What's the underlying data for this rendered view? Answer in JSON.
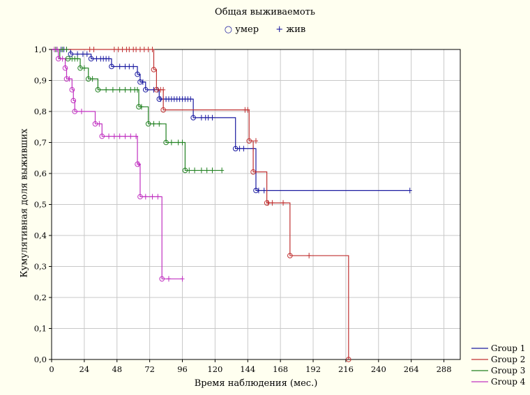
{
  "chart_data": {
    "type": "line",
    "step": true,
    "title": "Общая выживаемоть",
    "xlabel": "Время наблюдения (мес.)",
    "ylabel": "Кумулятивная доля выживших",
    "xlim": [
      0,
      300
    ],
    "ylim": [
      0,
      1
    ],
    "xticks": [
      0,
      24,
      48,
      72,
      96,
      120,
      144,
      168,
      192,
      216,
      240,
      264,
      288
    ],
    "yticks": [
      "0,0",
      "0,1",
      "0,2",
      "0,3",
      "0,4",
      "0,5",
      "0,6",
      "0,7",
      "0,8",
      "0,9",
      "1,0"
    ],
    "grid": true,
    "marker_legend": [
      {
        "symbol": "○",
        "label": "умер"
      },
      {
        "symbol": "+",
        "label": "жив"
      }
    ],
    "legend_placement": "bottom-right",
    "series": [
      {
        "name": "Group 1",
        "color": "#1a1aa0",
        "steps": [
          [
            0,
            1.0
          ],
          [
            14,
            0.985
          ],
          [
            29,
            0.97
          ],
          [
            44,
            0.945
          ],
          [
            63,
            0.92
          ],
          [
            65,
            0.895
          ],
          [
            69,
            0.87
          ],
          [
            79,
            0.84
          ],
          [
            104,
            0.78
          ],
          [
            135,
            0.68
          ],
          [
            150,
            0.545
          ],
          [
            263,
            0.545
          ]
        ],
        "censored": [
          [
            4,
            1.0
          ],
          [
            7,
            1.0
          ],
          [
            9,
            1.0
          ],
          [
            19,
            0.985
          ],
          [
            23,
            0.985
          ],
          [
            26,
            0.985
          ],
          [
            33,
            0.97
          ],
          [
            36,
            0.97
          ],
          [
            38,
            0.97
          ],
          [
            40,
            0.97
          ],
          [
            42,
            0.97
          ],
          [
            50,
            0.945
          ],
          [
            54,
            0.945
          ],
          [
            57,
            0.945
          ],
          [
            60,
            0.945
          ],
          [
            67,
            0.895
          ],
          [
            75,
            0.87
          ],
          [
            78,
            0.87
          ],
          [
            80,
            0.84
          ],
          [
            82,
            0.84
          ],
          [
            84,
            0.84
          ],
          [
            86,
            0.84
          ],
          [
            88,
            0.84
          ],
          [
            90,
            0.84
          ],
          [
            92,
            0.84
          ],
          [
            94,
            0.84
          ],
          [
            96,
            0.84
          ],
          [
            98,
            0.84
          ],
          [
            100,
            0.84
          ],
          [
            102,
            0.84
          ],
          [
            110,
            0.78
          ],
          [
            113,
            0.78
          ],
          [
            115,
            0.78
          ],
          [
            118,
            0.78
          ],
          [
            138,
            0.68
          ],
          [
            141,
            0.68
          ],
          [
            148,
            0.68
          ],
          [
            152,
            0.545
          ],
          [
            156,
            0.545
          ],
          [
            263,
            0.545
          ]
        ],
        "events": [
          [
            14,
            0.985
          ],
          [
            29,
            0.97
          ],
          [
            44,
            0.945
          ],
          [
            63,
            0.92
          ],
          [
            65,
            0.895
          ],
          [
            69,
            0.87
          ],
          [
            79,
            0.84
          ],
          [
            104,
            0.78
          ],
          [
            135,
            0.68
          ],
          [
            150,
            0.545
          ]
        ]
      },
      {
        "name": "Group 2",
        "color": "#c03030",
        "steps": [
          [
            0,
            1.0
          ],
          [
            75,
            0.935
          ],
          [
            77,
            0.87
          ],
          [
            82,
            0.805
          ],
          [
            145,
            0.705
          ],
          [
            148,
            0.605
          ],
          [
            158,
            0.505
          ],
          [
            175,
            0.335
          ],
          [
            218,
            0.0
          ]
        ],
        "censored": [
          [
            28,
            1.0
          ],
          [
            31,
            1.0
          ],
          [
            46,
            1.0
          ],
          [
            49,
            1.0
          ],
          [
            52,
            1.0
          ],
          [
            55,
            1.0
          ],
          [
            57,
            1.0
          ],
          [
            60,
            1.0
          ],
          [
            62,
            1.0
          ],
          [
            65,
            1.0
          ],
          [
            68,
            1.0
          ],
          [
            71,
            1.0
          ],
          [
            74,
            1.0
          ],
          [
            80,
            0.87
          ],
          [
            82,
            0.87
          ],
          [
            142,
            0.805
          ],
          [
            144,
            0.805
          ],
          [
            150,
            0.705
          ],
          [
            159,
            0.505
          ],
          [
            162,
            0.505
          ],
          [
            170,
            0.505
          ],
          [
            189,
            0.335
          ]
        ],
        "events": [
          [
            75,
            0.935
          ],
          [
            77,
            0.87
          ],
          [
            82,
            0.805
          ],
          [
            145,
            0.705
          ],
          [
            148,
            0.605
          ],
          [
            158,
            0.505
          ],
          [
            175,
            0.335
          ],
          [
            218,
            0.0
          ]
        ]
      },
      {
        "name": "Group 3",
        "color": "#208020",
        "steps": [
          [
            0,
            1.0
          ],
          [
            6,
            0.97
          ],
          [
            12,
            0.97
          ],
          [
            21,
            0.94
          ],
          [
            27,
            0.905
          ],
          [
            34,
            0.87
          ],
          [
            64,
            0.815
          ],
          [
            71,
            0.76
          ],
          [
            84,
            0.7
          ],
          [
            98,
            0.61
          ],
          [
            125,
            0.61
          ]
        ],
        "censored": [
          [
            3,
            1.0
          ],
          [
            8,
            1.0
          ],
          [
            11,
            1.0
          ],
          [
            15,
            0.97
          ],
          [
            17,
            0.97
          ],
          [
            19,
            0.97
          ],
          [
            24,
            0.94
          ],
          [
            30,
            0.905
          ],
          [
            40,
            0.87
          ],
          [
            45,
            0.87
          ],
          [
            50,
            0.87
          ],
          [
            54,
            0.87
          ],
          [
            58,
            0.87
          ],
          [
            61,
            0.87
          ],
          [
            63,
            0.87
          ],
          [
            66,
            0.815
          ],
          [
            75,
            0.76
          ],
          [
            79,
            0.76
          ],
          [
            88,
            0.7
          ],
          [
            93,
            0.7
          ],
          [
            96,
            0.7
          ],
          [
            101,
            0.61
          ],
          [
            105,
            0.61
          ],
          [
            110,
            0.61
          ],
          [
            114,
            0.61
          ],
          [
            118,
            0.61
          ],
          [
            125,
            0.61
          ]
        ],
        "events": [
          [
            12,
            0.97
          ],
          [
            21,
            0.94
          ],
          [
            27,
            0.905
          ],
          [
            34,
            0.87
          ],
          [
            64,
            0.815
          ],
          [
            71,
            0.76
          ],
          [
            84,
            0.7
          ],
          [
            98,
            0.61
          ]
        ]
      },
      {
        "name": "Group 4",
        "color": "#c030c0",
        "steps": [
          [
            0,
            1.0
          ],
          [
            5,
            0.97
          ],
          [
            10,
            0.94
          ],
          [
            11,
            0.905
          ],
          [
            15,
            0.87
          ],
          [
            16,
            0.835
          ],
          [
            17,
            0.8
          ],
          [
            32,
            0.76
          ],
          [
            37,
            0.72
          ],
          [
            63,
            0.63
          ],
          [
            65,
            0.525
          ],
          [
            81,
            0.26
          ],
          [
            96,
            0.26
          ]
        ],
        "censored": [
          [
            2,
            1.0
          ],
          [
            4,
            1.0
          ],
          [
            8,
            0.97
          ],
          [
            13,
            0.905
          ],
          [
            22,
            0.8
          ],
          [
            35,
            0.76
          ],
          [
            42,
            0.72
          ],
          [
            46,
            0.72
          ],
          [
            50,
            0.72
          ],
          [
            54,
            0.72
          ],
          [
            58,
            0.72
          ],
          [
            62,
            0.72
          ],
          [
            64,
            0.63
          ],
          [
            69,
            0.525
          ],
          [
            74,
            0.525
          ],
          [
            78,
            0.525
          ],
          [
            86,
            0.26
          ],
          [
            96,
            0.26
          ]
        ],
        "events": [
          [
            5,
            0.97
          ],
          [
            10,
            0.94
          ],
          [
            11,
            0.905
          ],
          [
            15,
            0.87
          ],
          [
            16,
            0.835
          ],
          [
            17,
            0.8
          ],
          [
            32,
            0.76
          ],
          [
            37,
            0.72
          ],
          [
            63,
            0.63
          ],
          [
            65,
            0.525
          ],
          [
            81,
            0.26
          ]
        ]
      }
    ]
  }
}
